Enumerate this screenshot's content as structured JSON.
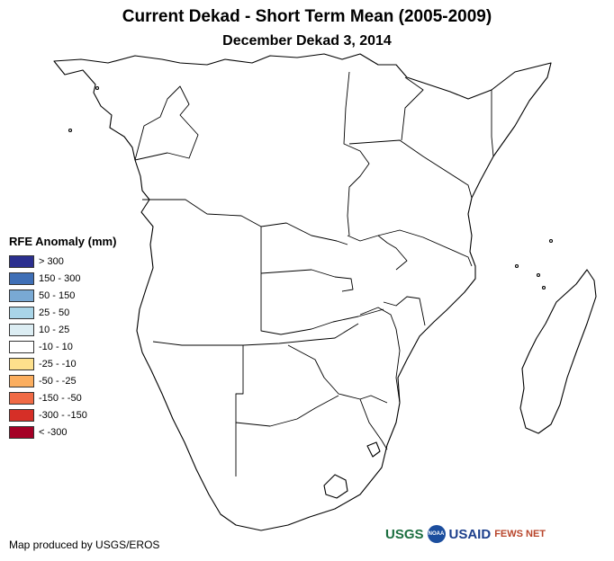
{
  "title": "Current Dekad - Short Term Mean (2005-2009)",
  "subtitle": "December Dekad 3, 2014",
  "legend": {
    "title": "RFE Anomaly (mm)",
    "items": [
      {
        "label": "> 300",
        "color": "#2b2f8f"
      },
      {
        "label": "150 - 300",
        "color": "#3f6fb6"
      },
      {
        "label": "50 - 150",
        "color": "#79a9d4"
      },
      {
        "label": "25 - 50",
        "color": "#a9d5e8"
      },
      {
        "label": "10 - 25",
        "color": "#dcedf3"
      },
      {
        "label": "-10 - 10",
        "color": "#ffffff"
      },
      {
        "label": "-25 - -10",
        "color": "#fde08c"
      },
      {
        "label": "-50 - -25",
        "color": "#fbae5f"
      },
      {
        "label": "-150 - -50",
        "color": "#f06a45"
      },
      {
        "label": "-300 - -150",
        "color": "#d62f27"
      },
      {
        "label": "< -300",
        "color": "#a50026"
      }
    ]
  },
  "credit": "Map produced by USGS/EROS",
  "logos": {
    "usgs": "USGS",
    "noaa": "NOAA",
    "usaid": "USAID",
    "fewsnet": "FEWS NET"
  }
}
